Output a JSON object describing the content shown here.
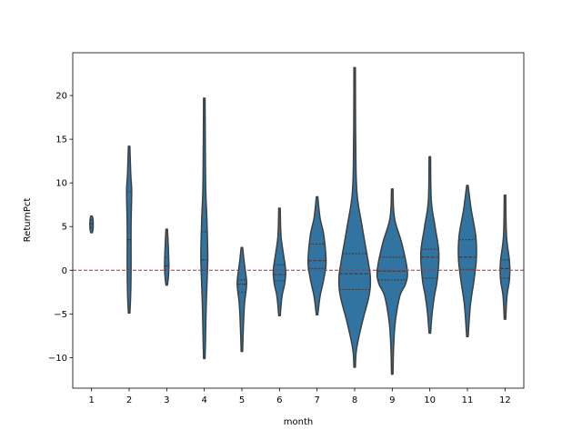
{
  "chart_data": {
    "type": "violin",
    "title": "",
    "xlabel": "month",
    "ylabel": "ReturnPct",
    "categories": [
      "1",
      "2",
      "3",
      "4",
      "5",
      "6",
      "7",
      "8",
      "9",
      "10",
      "11",
      "12"
    ],
    "ylim": [
      -13.5,
      24.9
    ],
    "yticks": [
      -10,
      -5,
      0,
      5,
      10,
      15,
      20
    ],
    "yticklabels": [
      "−10",
      "−5",
      "0",
      "5",
      "10",
      "15",
      "20"
    ],
    "reference_line": {
      "y": 0,
      "color": "#d62728",
      "style": "dashed"
    },
    "fill_color": "#3274a1",
    "edge_color": "#3f3f3f",
    "inner": "quartile",
    "violins": [
      {
        "month": "1",
        "min": 4.3,
        "max": 6.2,
        "q1": 4.9,
        "median": 5.3,
        "q3": 5.8,
        "profile": [
          [
            6.2,
            0
          ],
          [
            5.8,
            0.05
          ],
          [
            5.2,
            0.06
          ],
          [
            4.7,
            0.05
          ],
          [
            4.3,
            0
          ]
        ]
      },
      {
        "month": "2",
        "min": -4.9,
        "max": 14.2,
        "q1": 0.0,
        "median": 3.5,
        "q3": 9.0,
        "profile": [
          [
            14.2,
            0
          ],
          [
            11,
            0.06
          ],
          [
            9,
            0.12
          ],
          [
            5,
            0.08
          ],
          [
            0,
            0.08
          ],
          [
            -3,
            0.05
          ],
          [
            -4.9,
            0
          ]
        ]
      },
      {
        "month": "3",
        "min": -1.7,
        "max": 4.7,
        "q1": 0.0,
        "median": 0.5,
        "q3": 1.5,
        "profile": [
          [
            4.7,
            0
          ],
          [
            3,
            0.05
          ],
          [
            1,
            0.09
          ],
          [
            0,
            0.09
          ],
          [
            -1,
            0.05
          ],
          [
            -1.7,
            0
          ]
        ]
      },
      {
        "month": "4",
        "min": -10.1,
        "max": 19.7,
        "q1": 0.0,
        "median": 1.2,
        "q3": 4.4,
        "profile": [
          [
            19.7,
            0
          ],
          [
            10,
            0.04
          ],
          [
            6,
            0.12
          ],
          [
            2,
            0.18
          ],
          [
            0,
            0.16
          ],
          [
            -4,
            0.08
          ],
          [
            -8,
            0.03
          ],
          [
            -10.1,
            0
          ]
        ]
      },
      {
        "month": "5",
        "min": -9.3,
        "max": 2.6,
        "q1": -2.5,
        "median": -1.6,
        "q3": -1.1,
        "profile": [
          [
            2.6,
            0
          ],
          [
            1,
            0.1
          ],
          [
            -1,
            0.25
          ],
          [
            -2,
            0.25
          ],
          [
            -4,
            0.12
          ],
          [
            -7,
            0.04
          ],
          [
            -9.3,
            0
          ]
        ]
      },
      {
        "month": "6",
        "min": -5.2,
        "max": 7.1,
        "q1": -1.2,
        "median": -0.5,
        "q3": 0.6,
        "profile": [
          [
            7.1,
            0
          ],
          [
            4,
            0.05
          ],
          [
            2,
            0.2
          ],
          [
            0,
            0.36
          ],
          [
            -1.5,
            0.3
          ],
          [
            -3,
            0.12
          ],
          [
            -5.2,
            0
          ]
        ]
      },
      {
        "month": "7",
        "min": -5.1,
        "max": 8.4,
        "q1": 0.2,
        "median": 1.1,
        "q3": 3.0,
        "profile": [
          [
            8.4,
            0
          ],
          [
            6,
            0.15
          ],
          [
            4,
            0.4
          ],
          [
            1,
            0.55
          ],
          [
            -1,
            0.4
          ],
          [
            -3,
            0.15
          ],
          [
            -5.1,
            0
          ]
        ]
      },
      {
        "month": "8",
        "min": -11.1,
        "max": 23.2,
        "q1": -2.2,
        "median": -0.4,
        "q3": 1.9,
        "profile": [
          [
            23.2,
            0
          ],
          [
            15,
            0.02
          ],
          [
            9,
            0.1
          ],
          [
            5,
            0.45
          ],
          [
            1,
            0.85
          ],
          [
            -1,
            1.0
          ],
          [
            -3,
            0.9
          ],
          [
            -6,
            0.45
          ],
          [
            -9,
            0.08
          ],
          [
            -11.1,
            0
          ]
        ]
      },
      {
        "month": "9",
        "min": -11.9,
        "max": 9.3,
        "q1": -1.1,
        "median": -0.1,
        "q3": 1.5,
        "profile": [
          [
            9.3,
            0
          ],
          [
            6,
            0.1
          ],
          [
            3,
            0.6
          ],
          [
            0,
            0.95
          ],
          [
            -1.5,
            0.85
          ],
          [
            -3,
            0.45
          ],
          [
            -6,
            0.15
          ],
          [
            -9,
            0.04
          ],
          [
            -11.9,
            0
          ]
        ]
      },
      {
        "month": "10",
        "min": -7.2,
        "max": 13.0,
        "q1": -0.9,
        "median": 1.5,
        "q3": 2.4,
        "profile": [
          [
            13,
            0
          ],
          [
            8,
            0.05
          ],
          [
            5,
            0.3
          ],
          [
            2,
            0.55
          ],
          [
            -1,
            0.45
          ],
          [
            -3,
            0.25
          ],
          [
            -5,
            0.1
          ],
          [
            -7.2,
            0
          ]
        ]
      },
      {
        "month": "11",
        "min": -7.6,
        "max": 9.7,
        "q1": 0.1,
        "median": 1.5,
        "q3": 3.5,
        "profile": [
          [
            9.7,
            0
          ],
          [
            7,
            0.2
          ],
          [
            4,
            0.5
          ],
          [
            1.5,
            0.55
          ],
          [
            -1,
            0.4
          ],
          [
            -4,
            0.15
          ],
          [
            -7.6,
            0
          ]
        ]
      },
      {
        "month": "12",
        "min": -5.6,
        "max": 8.6,
        "q1": -0.9,
        "median": 0.2,
        "q3": 1.2,
        "profile": [
          [
            8.6,
            0
          ],
          [
            4,
            0.05
          ],
          [
            1,
            0.25
          ],
          [
            -1,
            0.25
          ],
          [
            -3,
            0.08
          ],
          [
            -5.6,
            0
          ]
        ]
      }
    ]
  }
}
